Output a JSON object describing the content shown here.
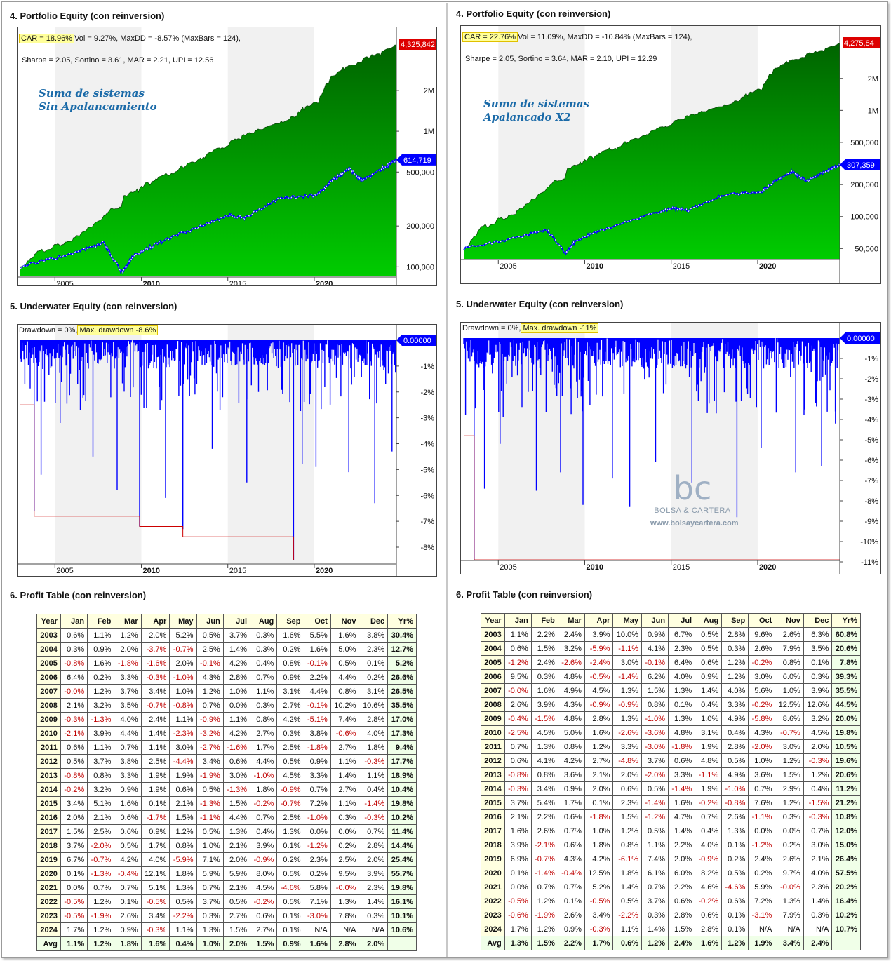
{
  "left": {
    "equity": {
      "title": "4. Portfolio Equity (con reinversion)",
      "car": "CAR = 18.96%",
      "stats1": "Vol = 9.27%, MaxDD = -8.57% (MaxBars = 124),",
      "stats2": "Sharpe = 2.05, Sortino = 3.61, MAR = 2.21, UPI = 12.56",
      "name1": "Suma de sistemas",
      "name2": "Sin Apalancamiento",
      "top_value": "4,325,842",
      "bench_value": "614,719",
      "y_ticks": [
        "2M",
        "1M",
        "500,000",
        "200,000",
        "100,000"
      ],
      "x_ticks": [
        "2005",
        "2010",
        "2015",
        "2020"
      ]
    },
    "underwater": {
      "title": "5. Underwater Equity (con reinversion)",
      "dd_label": "Drawdown = 0%,",
      "maxdd_label": "Max. drawdown -8.6%",
      "value_label": "0.00000",
      "y_ticks": [
        "-1%",
        "-2%",
        "-3%",
        "-4%",
        "-5%",
        "-6%",
        "-7%",
        "-8%"
      ],
      "x_ticks": [
        "2005",
        "2010",
        "2015",
        "2020"
      ]
    },
    "profit": {
      "title": "6. Profit Table (con reinversion)"
    }
  },
  "right": {
    "equity": {
      "title": "4. Portfolio Equity (con reinversion)",
      "car": "CAR = 22.76%",
      "stats1": "Vol = 11.09%, MaxDD = -10.84% (MaxBars = 124),",
      "stats2": "Sharpe = 2.05, Sortino = 3.64, MAR = 2.10, UPI = 12.29",
      "name1": "Suma de sistemas",
      "name2": "Apalancado X2",
      "top_value": "4,275,84",
      "bench_value": "307,359",
      "y_ticks": [
        "2M",
        "1M",
        "500,000",
        "200,000",
        "100,000",
        "50,000"
      ],
      "x_ticks": [
        "2005",
        "2010",
        "2015",
        "2020"
      ]
    },
    "underwater": {
      "title": "5. Underwater Equity (con reinversion)",
      "dd_label": "Drawdown = 0%,",
      "maxdd_label": "Max. drawdown -11%",
      "value_label": "0.00000",
      "y_ticks": [
        "-1%",
        "-2%",
        "-3%",
        "-4%",
        "-5%",
        "-6%",
        "-7%",
        "-8%",
        "-9%",
        "-10%",
        "-11%"
      ],
      "x_ticks": [
        "2005",
        "2010",
        "2015",
        "2020"
      ]
    },
    "profit": {
      "title": "6. Profit Table (con reinversion)"
    }
  },
  "watermark": {
    "logo": "bc",
    "brand": "BOLSA & CARTERA",
    "url": "www.bolsaycartera.com"
  },
  "colors": {
    "equity_dark": "#006400",
    "equity_light": "#00cc00",
    "benchmark": "#0000ff",
    "underwater": "#0000ff",
    "maxdd_line": "#cc0000",
    "top_label": "#dd0000",
    "negative": "#c00000"
  },
  "chart_data": [
    {
      "type": "table",
      "title": "6. Profit Table (con reinversion)",
      "columns": [
        "Year",
        "Jan",
        "Feb",
        "Mar",
        "Apr",
        "May",
        "Jun",
        "Jul",
        "Aug",
        "Sep",
        "Oct",
        "Nov",
        "Dec",
        "Yr%"
      ],
      "rows": [
        [
          "2003",
          "0.6%",
          "1.1%",
          "1.2%",
          "2.0%",
          "5.2%",
          "0.5%",
          "3.7%",
          "0.3%",
          "1.6%",
          "5.5%",
          "1.6%",
          "3.8%",
          "30.4%"
        ],
        [
          "2004",
          "0.3%",
          "0.9%",
          "2.0%",
          "-3.7%",
          "-0.7%",
          "2.5%",
          "1.4%",
          "0.3%",
          "0.2%",
          "1.6%",
          "5.0%",
          "2.3%",
          "12.7%"
        ],
        [
          "2005",
          "-0.8%",
          "1.6%",
          "-1.8%",
          "-1.6%",
          "2.0%",
          "-0.1%",
          "4.2%",
          "0.4%",
          "0.8%",
          "-0.1%",
          "0.5%",
          "0.1%",
          "5.2%"
        ],
        [
          "2006",
          "6.4%",
          "0.2%",
          "3.3%",
          "-0.3%",
          "-1.0%",
          "4.3%",
          "2.8%",
          "0.7%",
          "0.9%",
          "2.2%",
          "4.4%",
          "0.2%",
          "26.6%"
        ],
        [
          "2007",
          "-0.0%",
          "1.2%",
          "3.7%",
          "3.4%",
          "1.0%",
          "1.2%",
          "1.0%",
          "1.1%",
          "3.1%",
          "4.4%",
          "0.8%",
          "3.1%",
          "26.5%"
        ],
        [
          "2008",
          "2.1%",
          "3.2%",
          "3.5%",
          "-0.7%",
          "-0.8%",
          "0.7%",
          "0.0%",
          "0.3%",
          "2.7%",
          "-0.1%",
          "10.2%",
          "10.6%",
          "35.5%"
        ],
        [
          "2009",
          "-0.3%",
          "-1.3%",
          "4.0%",
          "2.4%",
          "1.1%",
          "-0.9%",
          "1.1%",
          "0.8%",
          "4.2%",
          "-5.1%",
          "7.4%",
          "2.8%",
          "17.0%"
        ],
        [
          "2010",
          "-2.1%",
          "3.9%",
          "4.4%",
          "1.4%",
          "-2.3%",
          "-3.2%",
          "4.2%",
          "2.7%",
          "0.3%",
          "3.8%",
          "-0.6%",
          "4.0%",
          "17.3%"
        ],
        [
          "2011",
          "0.6%",
          "1.1%",
          "0.7%",
          "1.1%",
          "3.0%",
          "-2.7%",
          "-1.6%",
          "1.7%",
          "2.5%",
          "-1.8%",
          "2.7%",
          "1.8%",
          "9.4%"
        ],
        [
          "2012",
          "0.5%",
          "3.7%",
          "3.8%",
          "2.5%",
          "-4.4%",
          "3.4%",
          "0.6%",
          "4.4%",
          "0.5%",
          "0.9%",
          "1.1%",
          "-0.3%",
          "17.7%"
        ],
        [
          "2013",
          "-0.8%",
          "0.8%",
          "3.3%",
          "1.9%",
          "1.9%",
          "-1.9%",
          "3.0%",
          "-1.0%",
          "4.5%",
          "3.3%",
          "1.4%",
          "1.1%",
          "18.9%"
        ],
        [
          "2014",
          "-0.2%",
          "3.2%",
          "0.9%",
          "1.9%",
          "0.6%",
          "0.5%",
          "-1.3%",
          "1.8%",
          "-0.9%",
          "0.7%",
          "2.7%",
          "0.4%",
          "10.4%"
        ],
        [
          "2015",
          "3.4%",
          "5.1%",
          "1.6%",
          "0.1%",
          "2.1%",
          "-1.3%",
          "1.5%",
          "-0.2%",
          "-0.7%",
          "7.2%",
          "1.1%",
          "-1.4%",
          "19.8%"
        ],
        [
          "2016",
          "2.0%",
          "2.1%",
          "0.6%",
          "-1.7%",
          "1.5%",
          "-1.1%",
          "4.4%",
          "0.7%",
          "2.5%",
          "-1.0%",
          "0.3%",
          "-0.3%",
          "10.2%"
        ],
        [
          "2017",
          "1.5%",
          "2.5%",
          "0.6%",
          "0.9%",
          "1.2%",
          "0.5%",
          "1.3%",
          "0.4%",
          "1.3%",
          "0.0%",
          "0.0%",
          "0.7%",
          "11.4%"
        ],
        [
          "2018",
          "3.7%",
          "-2.0%",
          "0.5%",
          "1.7%",
          "0.8%",
          "1.0%",
          "2.1%",
          "3.9%",
          "0.1%",
          "-1.2%",
          "0.2%",
          "2.8%",
          "14.4%"
        ],
        [
          "2019",
          "6.7%",
          "-0.7%",
          "4.2%",
          "4.0%",
          "-5.9%",
          "7.1%",
          "2.0%",
          "-0.9%",
          "0.2%",
          "2.3%",
          "2.5%",
          "2.0%",
          "25.4%"
        ],
        [
          "2020",
          "0.1%",
          "-1.3%",
          "-0.4%",
          "12.1%",
          "1.8%",
          "5.9%",
          "5.9%",
          "8.0%",
          "0.5%",
          "0.2%",
          "9.5%",
          "3.9%",
          "55.7%"
        ],
        [
          "2021",
          "0.0%",
          "0.7%",
          "0.7%",
          "5.1%",
          "1.3%",
          "0.7%",
          "2.1%",
          "4.5%",
          "-4.6%",
          "5.8%",
          "-0.0%",
          "2.3%",
          "19.8%"
        ],
        [
          "2022",
          "-0.5%",
          "1.2%",
          "0.1%",
          "-0.5%",
          "0.5%",
          "3.7%",
          "0.5%",
          "-0.2%",
          "0.5%",
          "7.1%",
          "1.3%",
          "1.4%",
          "16.1%"
        ],
        [
          "2023",
          "-0.5%",
          "-1.9%",
          "2.6%",
          "3.4%",
          "-2.2%",
          "0.3%",
          "2.7%",
          "0.6%",
          "0.1%",
          "-3.0%",
          "7.8%",
          "0.3%",
          "10.1%"
        ],
        [
          "2024",
          "1.7%",
          "1.2%",
          "0.9%",
          "-0.3%",
          "1.1%",
          "1.3%",
          "1.5%",
          "2.7%",
          "0.1%",
          "N/A",
          "N/A",
          "N/A",
          "10.6%"
        ],
        [
          "Avg",
          "1.1%",
          "1.2%",
          "1.8%",
          "1.6%",
          "0.4%",
          "1.0%",
          "2.0%",
          "1.5%",
          "0.9%",
          "1.6%",
          "2.8%",
          "2.0%",
          ""
        ]
      ]
    },
    {
      "type": "table",
      "title": "6. Profit Table (con reinversion)",
      "columns": [
        "Year",
        "Jan",
        "Feb",
        "Mar",
        "Apr",
        "May",
        "Jun",
        "Jul",
        "Aug",
        "Sep",
        "Oct",
        "Nov",
        "Dec",
        "Yr%"
      ],
      "rows": [
        [
          "2003",
          "1.1%",
          "2.2%",
          "2.4%",
          "3.9%",
          "10.0%",
          "0.9%",
          "6.7%",
          "0.5%",
          "2.8%",
          "9.6%",
          "2.6%",
          "6.3%",
          "60.8%"
        ],
        [
          "2004",
          "0.6%",
          "1.5%",
          "3.2%",
          "-5.9%",
          "-1.1%",
          "4.1%",
          "2.3%",
          "0.5%",
          "0.3%",
          "2.6%",
          "7.9%",
          "3.5%",
          "20.6%"
        ],
        [
          "2005",
          "-1.2%",
          "2.4%",
          "-2.6%",
          "-2.4%",
          "3.0%",
          "-0.1%",
          "6.4%",
          "0.6%",
          "1.2%",
          "-0.2%",
          "0.8%",
          "0.1%",
          "7.8%"
        ],
        [
          "2006",
          "9.5%",
          "0.3%",
          "4.8%",
          "-0.5%",
          "-1.4%",
          "6.2%",
          "4.0%",
          "0.9%",
          "1.2%",
          "3.0%",
          "6.0%",
          "0.3%",
          "39.3%"
        ],
        [
          "2007",
          "-0.0%",
          "1.6%",
          "4.9%",
          "4.5%",
          "1.3%",
          "1.5%",
          "1.3%",
          "1.4%",
          "4.0%",
          "5.6%",
          "1.0%",
          "3.9%",
          "35.5%"
        ],
        [
          "2008",
          "2.6%",
          "3.9%",
          "4.3%",
          "-0.9%",
          "-0.9%",
          "0.8%",
          "0.1%",
          "0.4%",
          "3.3%",
          "-0.2%",
          "12.5%",
          "12.6%",
          "44.5%"
        ],
        [
          "2009",
          "-0.4%",
          "-1.5%",
          "4.8%",
          "2.8%",
          "1.3%",
          "-1.0%",
          "1.3%",
          "1.0%",
          "4.9%",
          "-5.8%",
          "8.6%",
          "3.2%",
          "20.0%"
        ],
        [
          "2010",
          "-2.5%",
          "4.5%",
          "5.0%",
          "1.6%",
          "-2.6%",
          "-3.6%",
          "4.8%",
          "3.1%",
          "0.4%",
          "4.3%",
          "-0.7%",
          "4.5%",
          "19.8%"
        ],
        [
          "2011",
          "0.7%",
          "1.3%",
          "0.8%",
          "1.2%",
          "3.3%",
          "-3.0%",
          "-1.8%",
          "1.9%",
          "2.8%",
          "-2.0%",
          "3.0%",
          "2.0%",
          "10.5%"
        ],
        [
          "2012",
          "0.6%",
          "4.1%",
          "4.2%",
          "2.7%",
          "-4.8%",
          "3.7%",
          "0.6%",
          "4.8%",
          "0.5%",
          "1.0%",
          "1.2%",
          "-0.3%",
          "19.6%"
        ],
        [
          "2013",
          "-0.8%",
          "0.8%",
          "3.6%",
          "2.1%",
          "2.0%",
          "-2.0%",
          "3.3%",
          "-1.1%",
          "4.9%",
          "3.6%",
          "1.5%",
          "1.2%",
          "20.6%"
        ],
        [
          "2014",
          "-0.3%",
          "3.4%",
          "0.9%",
          "2.0%",
          "0.6%",
          "0.5%",
          "-1.4%",
          "1.9%",
          "-1.0%",
          "0.7%",
          "2.9%",
          "0.4%",
          "11.2%"
        ],
        [
          "2015",
          "3.7%",
          "5.4%",
          "1.7%",
          "0.1%",
          "2.3%",
          "-1.4%",
          "1.6%",
          "-0.2%",
          "-0.8%",
          "7.6%",
          "1.2%",
          "-1.5%",
          "21.2%"
        ],
        [
          "2016",
          "2.1%",
          "2.2%",
          "0.6%",
          "-1.8%",
          "1.5%",
          "-1.2%",
          "4.7%",
          "0.7%",
          "2.6%",
          "-1.1%",
          "0.3%",
          "-0.3%",
          "10.8%"
        ],
        [
          "2017",
          "1.6%",
          "2.6%",
          "0.7%",
          "1.0%",
          "1.2%",
          "0.5%",
          "1.4%",
          "0.4%",
          "1.3%",
          "0.0%",
          "0.0%",
          "0.7%",
          "12.0%"
        ],
        [
          "2018",
          "3.9%",
          "-2.1%",
          "0.6%",
          "1.8%",
          "0.8%",
          "1.1%",
          "2.2%",
          "4.0%",
          "0.1%",
          "-1.2%",
          "0.2%",
          "3.0%",
          "15.0%"
        ],
        [
          "2019",
          "6.9%",
          "-0.7%",
          "4.3%",
          "4.2%",
          "-6.1%",
          "7.4%",
          "2.0%",
          "-0.9%",
          "0.2%",
          "2.4%",
          "2.6%",
          "2.1%",
          "26.4%"
        ],
        [
          "2020",
          "0.1%",
          "-1.4%",
          "-0.4%",
          "12.5%",
          "1.8%",
          "6.1%",
          "6.0%",
          "8.2%",
          "0.5%",
          "0.2%",
          "9.7%",
          "4.0%",
          "57.5%"
        ],
        [
          "2021",
          "0.0%",
          "0.7%",
          "0.7%",
          "5.2%",
          "1.4%",
          "0.7%",
          "2.2%",
          "4.6%",
          "-4.6%",
          "5.9%",
          "-0.0%",
          "2.3%",
          "20.2%"
        ],
        [
          "2022",
          "-0.5%",
          "1.2%",
          "0.1%",
          "-0.5%",
          "0.5%",
          "3.7%",
          "0.6%",
          "-0.2%",
          "0.6%",
          "7.2%",
          "1.3%",
          "1.4%",
          "16.4%"
        ],
        [
          "2023",
          "-0.6%",
          "-1.9%",
          "2.6%",
          "3.4%",
          "-2.2%",
          "0.3%",
          "2.8%",
          "0.6%",
          "0.1%",
          "-3.1%",
          "7.9%",
          "0.3%",
          "10.2%"
        ],
        [
          "2024",
          "1.7%",
          "1.2%",
          "0.9%",
          "-0.3%",
          "1.1%",
          "1.4%",
          "1.5%",
          "2.8%",
          "0.1%",
          "N/A",
          "N/A",
          "N/A",
          "10.7%"
        ],
        [
          "Avg",
          "1.3%",
          "1.5%",
          "2.2%",
          "1.7%",
          "0.6%",
          "1.2%",
          "2.4%",
          "1.6%",
          "1.2%",
          "1.9%",
          "3.4%",
          "2.4%",
          ""
        ]
      ]
    }
  ]
}
